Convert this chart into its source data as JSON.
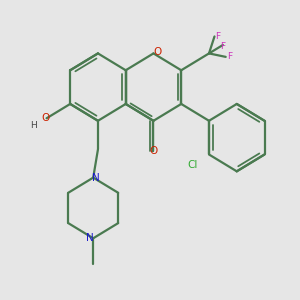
{
  "bg_color": "#e6e6e6",
  "bond_color": "#4a7a50",
  "bond_width": 1.6,
  "atom_colors": {
    "O": "#cc2200",
    "N": "#1a1acc",
    "F": "#cc33bb",
    "Cl": "#33aa33",
    "H": "#555555"
  },
  "figsize": [
    3.0,
    3.0
  ],
  "dpi": 100
}
